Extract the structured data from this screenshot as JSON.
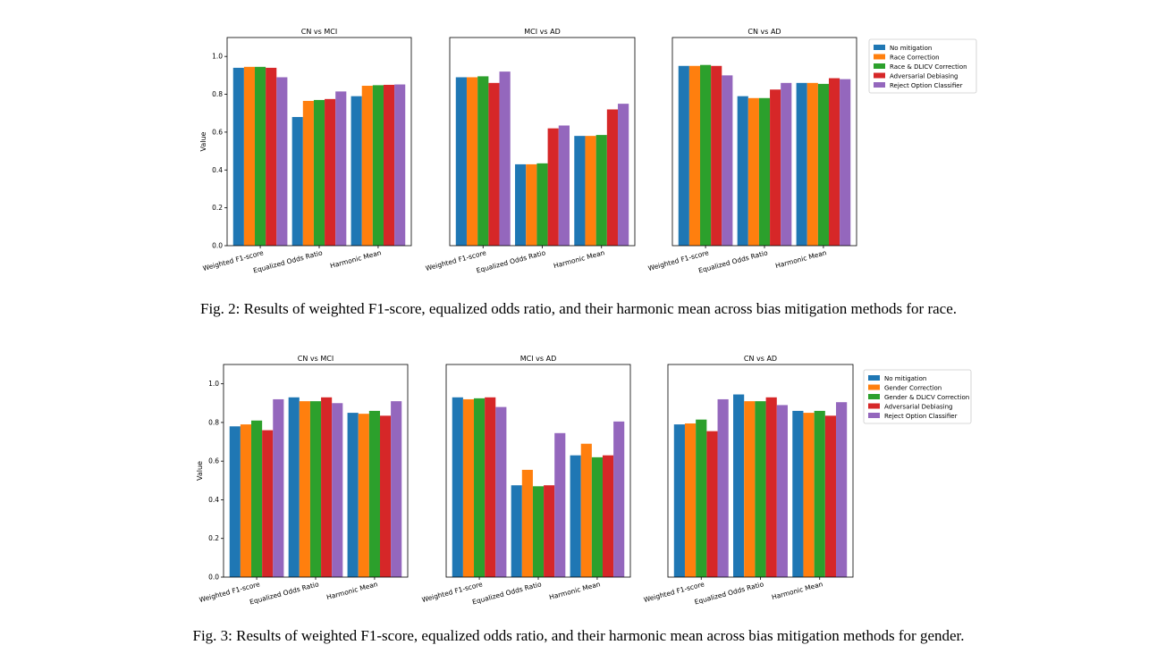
{
  "captions": [
    "Fig. 2: Results of weighted F1-score, equalized odds ratio, and their harmonic mean across bias mitigation methods for race.",
    "Fig. 3: Results of weighted F1-score, equalized odds ratio, and their harmonic mean across bias mitigation methods for gender."
  ],
  "colors": [
    "#1f77b4",
    "#ff7f0e",
    "#2ca02c",
    "#d62728",
    "#9467bd"
  ],
  "chart_data": [
    {
      "type": "bar",
      "title": "CN vs MCI",
      "ylabel": "Value",
      "ylim": [
        0,
        1.1
      ],
      "yticks": [
        "0.0",
        "0.2",
        "0.4",
        "0.6",
        "0.8",
        "1.0"
      ],
      "categories": [
        "Weighted F1-score",
        "Equalized Odds Ratio",
        "Harmonic Mean"
      ],
      "legend_placement": "outside-right",
      "series": [
        {
          "name": "No mitigation",
          "values": [
            0.94,
            0.68,
            0.79
          ]
        },
        {
          "name": "Race Correction",
          "values": [
            0.945,
            0.765,
            0.845
          ]
        },
        {
          "name": "Race & DLICV Correction",
          "values": [
            0.945,
            0.77,
            0.848
          ]
        },
        {
          "name": "Adversarial Debiasing",
          "values": [
            0.94,
            0.775,
            0.85
          ]
        },
        {
          "name": "Reject Option Classifier",
          "values": [
            0.89,
            0.815,
            0.852
          ]
        }
      ]
    },
    {
      "type": "bar",
      "title": "MCI vs AD",
      "ylabel": "",
      "ylim": [
        0,
        1.1
      ],
      "yticks": [],
      "categories": [
        "Weighted F1-score",
        "Equalized Odds Ratio",
        "Harmonic Mean"
      ],
      "series": [
        {
          "name": "No mitigation",
          "values": [
            0.89,
            0.43,
            0.58
          ]
        },
        {
          "name": "Race Correction",
          "values": [
            0.89,
            0.43,
            0.58
          ]
        },
        {
          "name": "Race & DLICV Correction",
          "values": [
            0.895,
            0.435,
            0.585
          ]
        },
        {
          "name": "Adversarial Debiasing",
          "values": [
            0.86,
            0.62,
            0.72
          ]
        },
        {
          "name": "Reject Option Classifier",
          "values": [
            0.92,
            0.635,
            0.75
          ]
        }
      ]
    },
    {
      "type": "bar",
      "title": "CN vs AD",
      "ylabel": "",
      "ylim": [
        0,
        1.1
      ],
      "yticks": [],
      "categories": [
        "Weighted F1-score",
        "Equalized Odds Ratio",
        "Harmonic Mean"
      ],
      "series": [
        {
          "name": "No mitigation",
          "values": [
            0.95,
            0.79,
            0.86
          ]
        },
        {
          "name": "Race Correction",
          "values": [
            0.95,
            0.78,
            0.86
          ]
        },
        {
          "name": "Race & DLICV Correction",
          "values": [
            0.955,
            0.78,
            0.855
          ]
        },
        {
          "name": "Adversarial Debiasing",
          "values": [
            0.95,
            0.825,
            0.885
          ]
        },
        {
          "name": "Reject Option Classifier",
          "values": [
            0.9,
            0.86,
            0.88
          ]
        }
      ]
    },
    {
      "type": "bar",
      "title": "CN vs MCI",
      "ylabel": "Value",
      "ylim": [
        0,
        1.1
      ],
      "yticks": [
        "0.0",
        "0.2",
        "0.4",
        "0.6",
        "0.8",
        "1.0"
      ],
      "categories": [
        "Weighted F1-score",
        "Equalized Odds Ratio",
        "Harmonic Mean"
      ],
      "legend_placement": "outside-right",
      "series": [
        {
          "name": "No mitigation",
          "values": [
            0.78,
            0.93,
            0.85
          ]
        },
        {
          "name": "Gender Correction",
          "values": [
            0.79,
            0.91,
            0.845
          ]
        },
        {
          "name": "Gender & DLICV Correction",
          "values": [
            0.81,
            0.91,
            0.86
          ]
        },
        {
          "name": "Adversarial Debiasing",
          "values": [
            0.76,
            0.93,
            0.835
          ]
        },
        {
          "name": "Reject Option Classifier",
          "values": [
            0.92,
            0.9,
            0.91
          ]
        }
      ]
    },
    {
      "type": "bar",
      "title": "MCI vs AD",
      "ylabel": "",
      "ylim": [
        0,
        1.1
      ],
      "yticks": [],
      "categories": [
        "Weighted F1-score",
        "Equalized Odds Ratio",
        "Harmonic Mean"
      ],
      "series": [
        {
          "name": "No mitigation",
          "values": [
            0.93,
            0.475,
            0.63
          ]
        },
        {
          "name": "Gender Correction",
          "values": [
            0.92,
            0.555,
            0.69
          ]
        },
        {
          "name": "Gender & DLICV Correction",
          "values": [
            0.925,
            0.47,
            0.62
          ]
        },
        {
          "name": "Adversarial Debiasing",
          "values": [
            0.93,
            0.475,
            0.63
          ]
        },
        {
          "name": "Reject Option Classifier",
          "values": [
            0.88,
            0.745,
            0.805
          ]
        }
      ]
    },
    {
      "type": "bar",
      "title": "CN vs AD",
      "ylabel": "",
      "ylim": [
        0,
        1.1
      ],
      "yticks": [],
      "categories": [
        "Weighted F1-score",
        "Equalized Odds Ratio",
        "Harmonic Mean"
      ],
      "series": [
        {
          "name": "No mitigation",
          "values": [
            0.79,
            0.945,
            0.86
          ]
        },
        {
          "name": "Gender Correction",
          "values": [
            0.795,
            0.91,
            0.85
          ]
        },
        {
          "name": "Gender & DLICV Correction",
          "values": [
            0.815,
            0.91,
            0.86
          ]
        },
        {
          "name": "Adversarial Debiasing",
          "values": [
            0.755,
            0.93,
            0.835
          ]
        },
        {
          "name": "Reject Option Classifier",
          "values": [
            0.92,
            0.89,
            0.905
          ]
        }
      ]
    }
  ]
}
